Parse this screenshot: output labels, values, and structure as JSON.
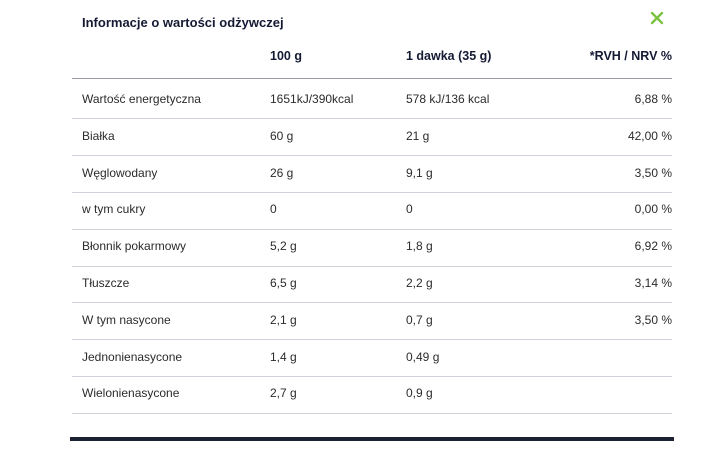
{
  "header": {
    "title": "Informacje o wartości odżywczej"
  },
  "table": {
    "columns": [
      "100 g",
      "1 dawka (35 g)",
      "*RVH / NRV %"
    ],
    "rows": [
      [
        "Wartość energetyczna",
        "1651kJ/390kcal",
        "578 kJ/136 kcal",
        "6,88 %"
      ],
      [
        "Białka",
        "60 g",
        "21 g",
        "42,00 %"
      ],
      [
        "Węglowodany",
        "26 g",
        "9,1 g",
        "3,50 %"
      ],
      [
        "w tym cukry",
        "0",
        "0",
        "0,00 %"
      ],
      [
        "Błonnik pokarmowy",
        "5,2 g",
        "1,8 g",
        "6,92 %"
      ],
      [
        "Tłuszcze",
        "6,5 g",
        "2,2 g",
        "3,14 %"
      ],
      [
        "W tym nasycone",
        "2,1 g",
        "0,7 g",
        "3,50 %"
      ],
      [
        "Jednonienasycone",
        "1,4 g",
        "0,49 g"
      ],
      [
        "Wielonienasycone",
        "2,7 g",
        "0,9 g"
      ]
    ]
  }
}
